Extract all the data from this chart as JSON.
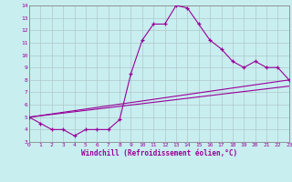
{
  "xlabel": "Windchill (Refroidissement éolien,°C)",
  "xlim": [
    0,
    23
  ],
  "ylim": [
    3,
    14
  ],
  "xticks": [
    0,
    1,
    2,
    3,
    4,
    5,
    6,
    7,
    8,
    9,
    10,
    11,
    12,
    13,
    14,
    15,
    16,
    17,
    18,
    19,
    20,
    21,
    22,
    23
  ],
  "yticks": [
    3,
    4,
    5,
    6,
    7,
    8,
    9,
    10,
    11,
    12,
    13,
    14
  ],
  "bg_color": "#c8eef0",
  "line_color": "#990099",
  "grid_color": "#b0c8c8",
  "line1_x": [
    0,
    1,
    2,
    3,
    4,
    5,
    6,
    7,
    8,
    9,
    10,
    11,
    12,
    13,
    14,
    15,
    16,
    17,
    18,
    19,
    20,
    21,
    22,
    23
  ],
  "line1_y": [
    5.0,
    4.5,
    4.0,
    4.0,
    3.5,
    4.0,
    4.0,
    4.0,
    4.8,
    8.5,
    11.2,
    12.5,
    12.5,
    14.0,
    13.8,
    12.5,
    11.2,
    10.5,
    9.5,
    9.0,
    9.5,
    9.0,
    9.0,
    8.0
  ],
  "line2_x": [
    0,
    23
  ],
  "line2_y": [
    5.0,
    8.0
  ],
  "line3_x": [
    0,
    23
  ],
  "line3_y": [
    5.0,
    7.5
  ]
}
